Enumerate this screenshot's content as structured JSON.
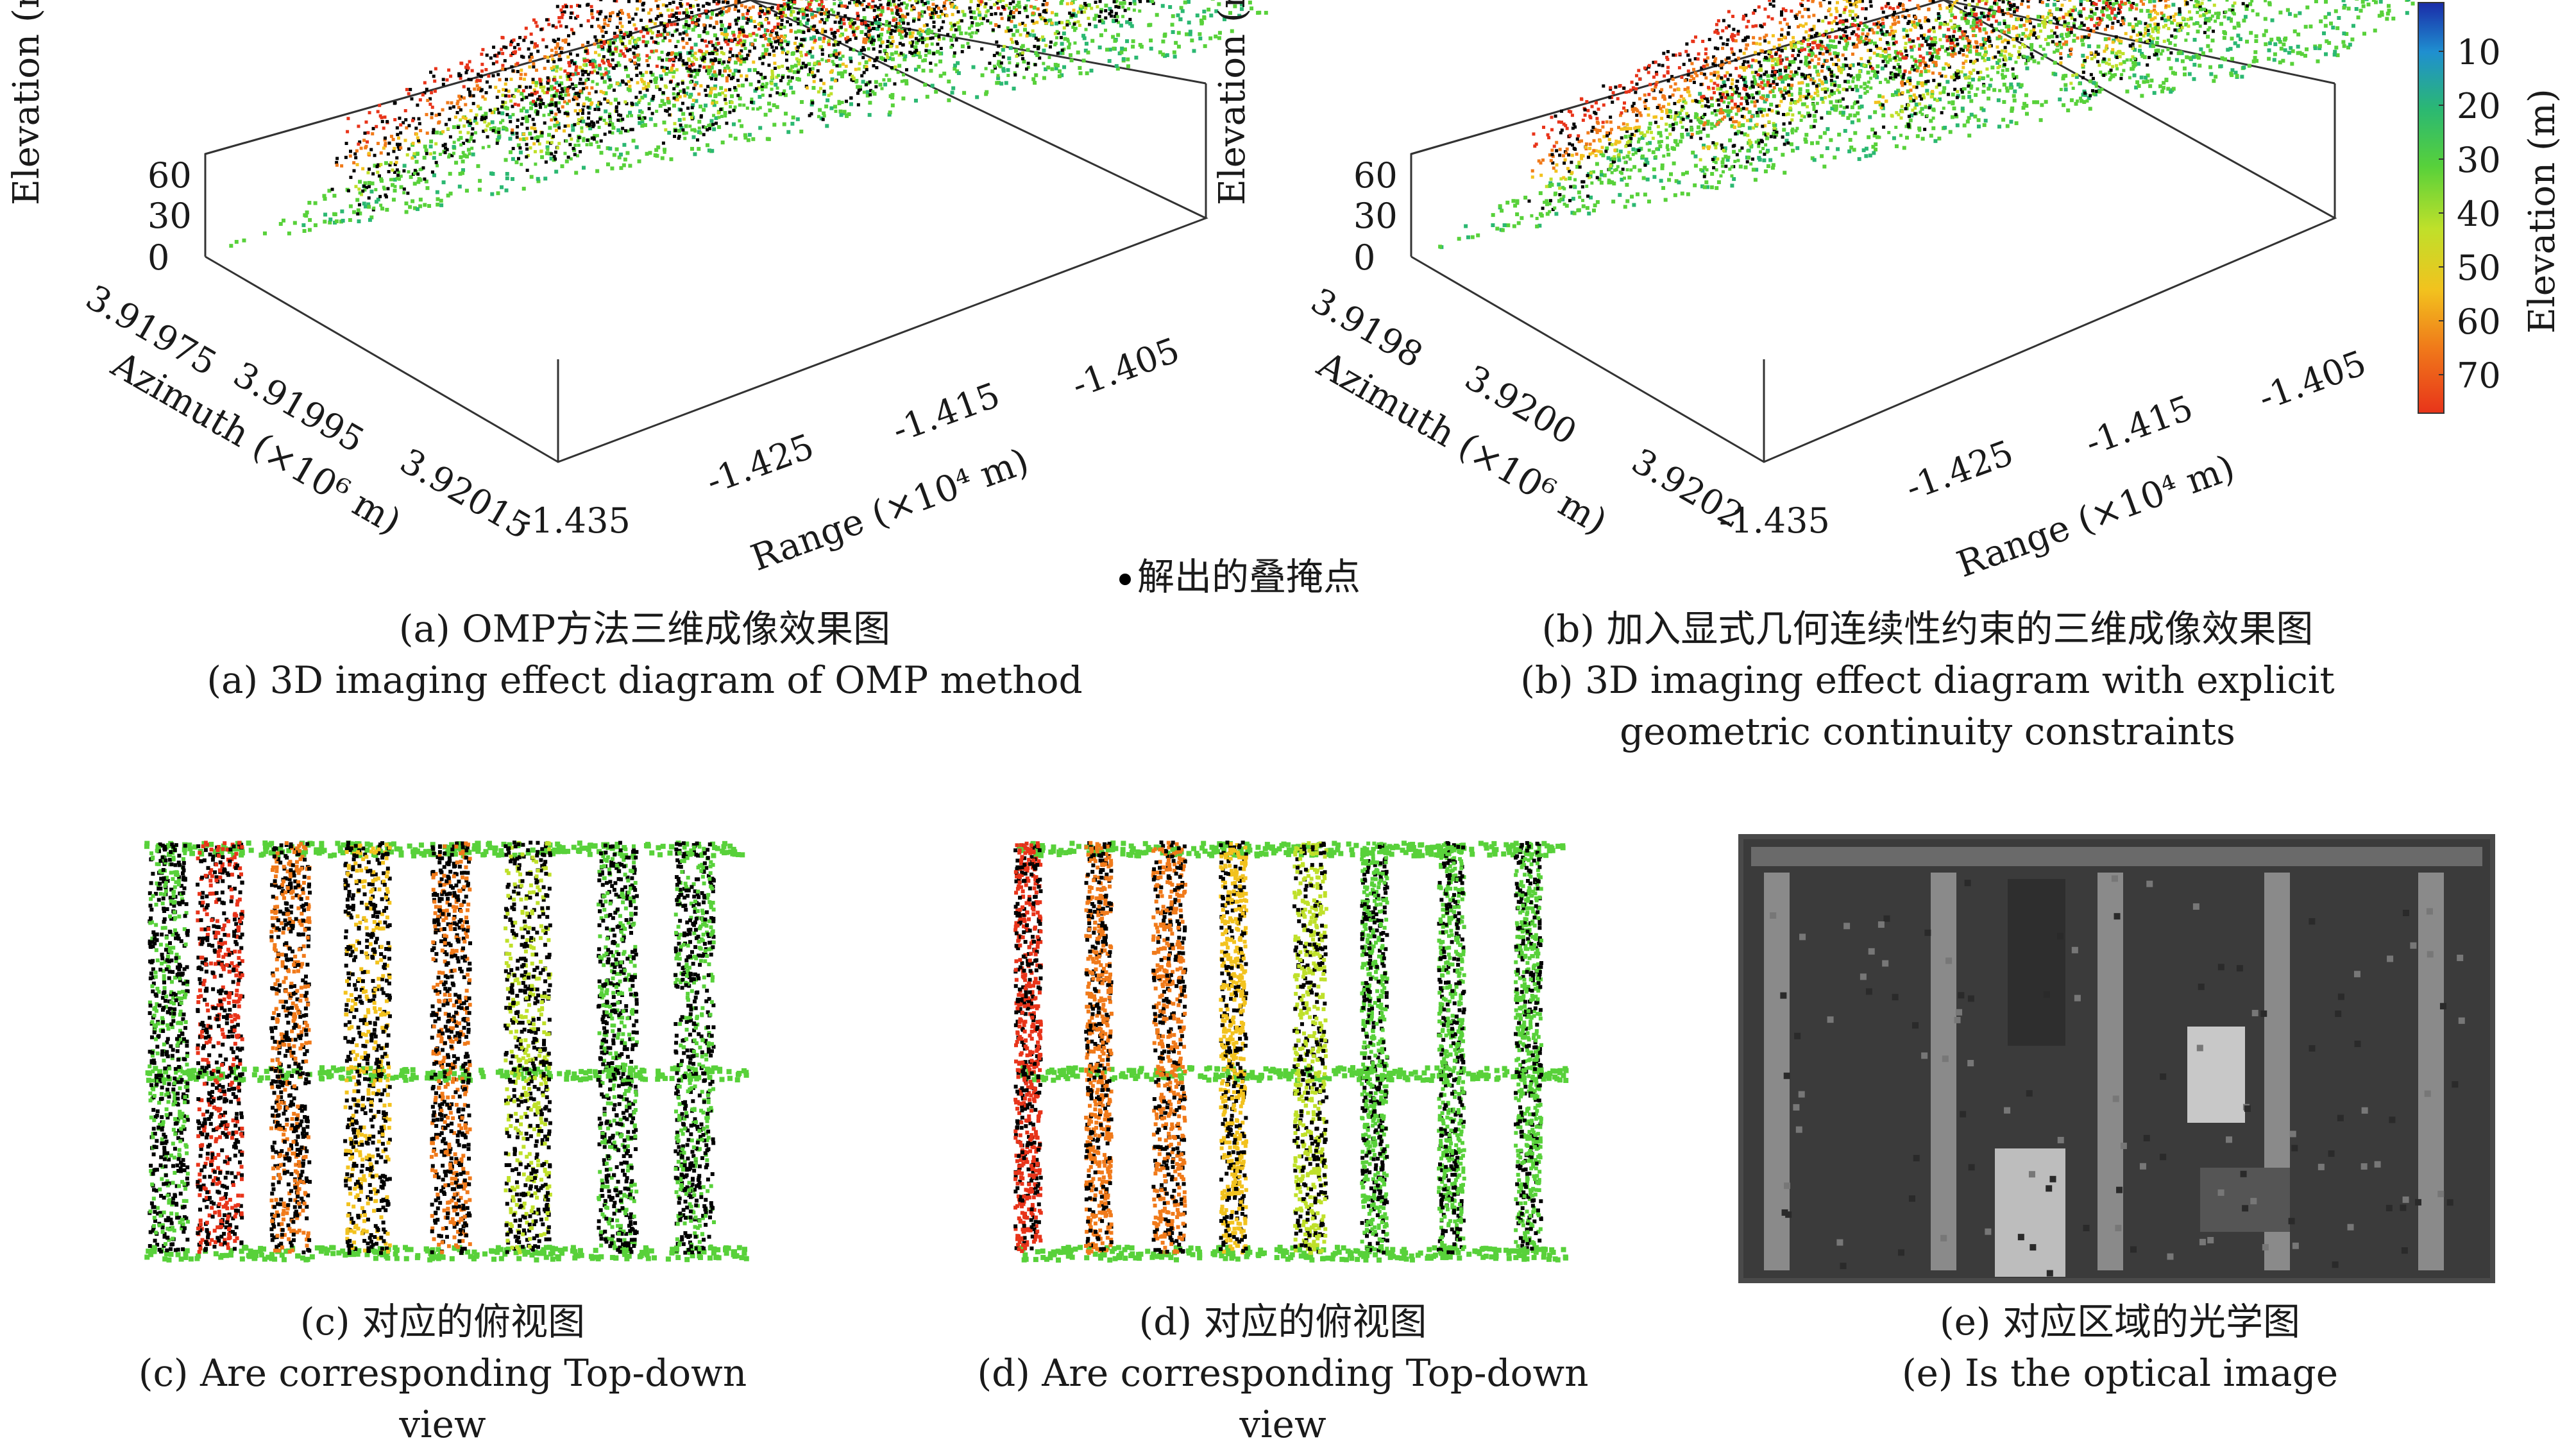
{
  "chart_data": [
    {
      "id": "a",
      "type": "scatter3d",
      "zlabel": "Elevation (m)",
      "ylabel": "Azimuth (×10⁶ m)",
      "xlabel": "Range (×10⁴ m)",
      "z_ticks": [
        "0",
        "30",
        "60"
      ],
      "y_ticks": [
        "3.91975",
        "3.91995",
        "3.92015"
      ],
      "x_ticks": [
        "-1.435",
        "-1.425",
        "-1.415",
        "-1.405"
      ],
      "caption_cn": "(a) OMP方法三维成像效果图",
      "caption_en": "(a) 3D imaging effect diagram of OMP method"
    },
    {
      "id": "b",
      "type": "scatter3d",
      "zlabel": "Elevation (m)",
      "ylabel": "Azimuth (×10⁶ m)",
      "xlabel": "Range (×10⁴ m)",
      "z_ticks": [
        "0",
        "30",
        "60"
      ],
      "y_ticks": [
        "3.9198",
        "3.9200",
        "3.9202"
      ],
      "x_ticks": [
        "-1.435",
        "-1.425",
        "-1.415",
        "-1.405"
      ],
      "caption_cn": "(b) 加入显式几何连续性约束的三维成像效果图",
      "caption_en": "(b) 3D imaging effect diagram with explicit",
      "caption_en2": "geometric continuity constraints"
    },
    {
      "id": "c",
      "type": "scatter",
      "caption_cn": "(c) 对应的俯视图",
      "caption_en": "(c) Are corresponding Top-down view"
    },
    {
      "id": "d",
      "type": "scatter",
      "caption_cn": "(d) 对应的俯视图",
      "caption_en": "(d) Are corresponding Top-down view"
    },
    {
      "id": "e",
      "type": "image",
      "caption_cn": "(e) 对应区域的光学图",
      "caption_en": "(e) Is the optical image"
    }
  ],
  "colorbar": {
    "label": "Elevation (m)",
    "ticks": [
      "10",
      "20",
      "30",
      "40",
      "50",
      "60",
      "70"
    ],
    "colors": [
      "#1a2ba8",
      "#1f8fd0",
      "#2bb872",
      "#58d13a",
      "#bfe02a",
      "#f2c21e",
      "#f07a1a",
      "#e8341a"
    ]
  },
  "legend": {
    "marker": "black-dot",
    "label": "解出的叠掩点"
  }
}
